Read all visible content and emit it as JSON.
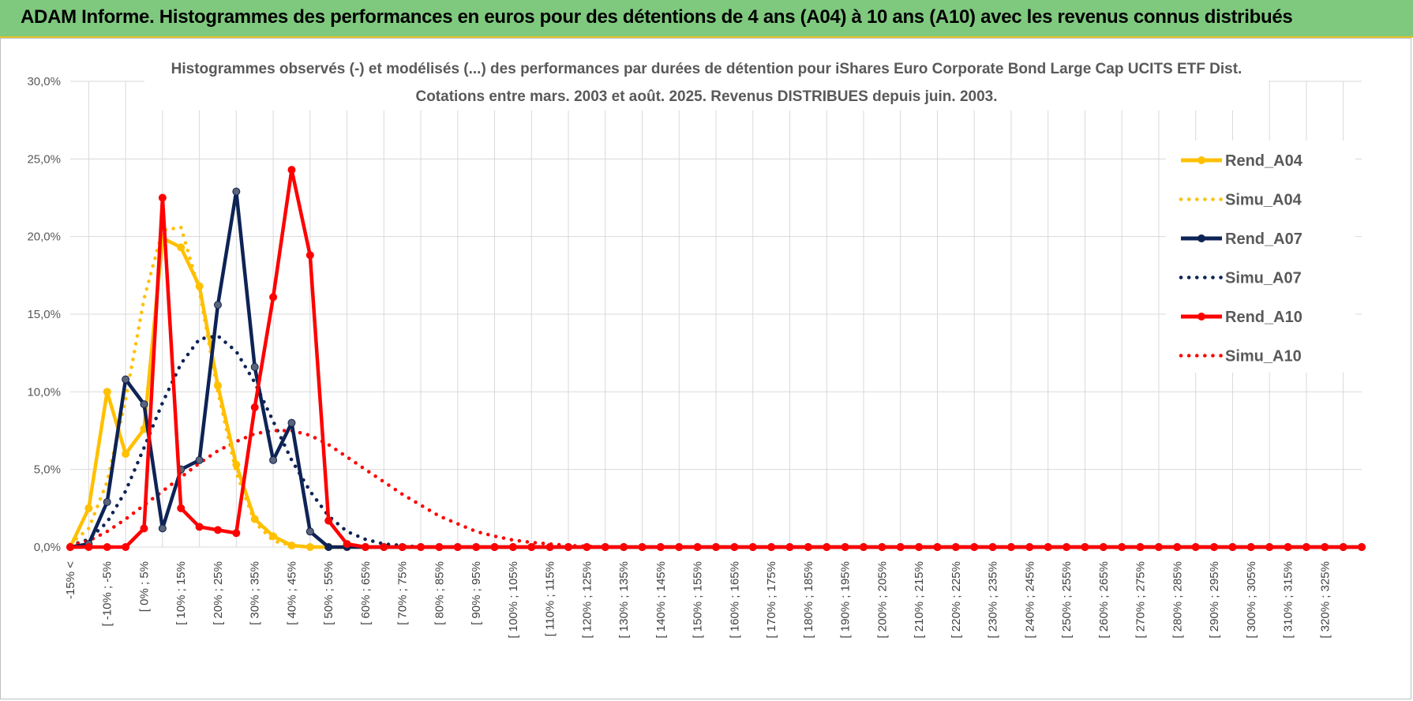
{
  "header": {
    "title": "ADAM Informe. Histogrammes des performances en euros pour des détentions de 4 ans (A04) à 10 ans (A10) avec les revenus connus distribués"
  },
  "chart_data": {
    "type": "line",
    "title": "Histogrammes observés (-) et modélisés (...) des performances par durées de détention pour iShares Euro Corporate Bond Large Cap UCITS ETF Dist.",
    "subtitle": "Cotations entre mars. 2003 et août. 2025. Revenus DISTRIBUES depuis juin. 2003.",
    "xlabel": "",
    "ylabel": "",
    "ylim": [
      0,
      30
    ],
    "yticks": [
      "0,0%",
      "5,0%",
      "10,0%",
      "15,0%",
      "20,0%",
      "25,0%",
      "30,0%"
    ],
    "grid": true,
    "legend_position": "right",
    "x_labels": [
      "-15% <",
      "[ -10% ; -5%",
      "[ 0% ; 5%",
      "[ 10% ; 15%",
      "[ 20% ; 25%",
      "[ 30% ; 35%",
      "[ 40% ; 45%",
      "[ 50% ; 55%",
      "[ 60% ; 65%",
      "[ 70% ; 75%",
      "[ 80% ; 85%",
      "[ 90% ; 95%",
      "[ 100% ; 105%",
      "[ 110% ; 115%",
      "[ 120% ; 125%",
      "[ 130% ; 135%",
      "[ 140% ; 145%",
      "[ 150% ; 155%",
      "[ 160% ; 165%",
      "[ 170% ; 175%",
      "[ 180% ; 185%",
      "[ 190% ; 195%",
      "[ 200% ; 205%",
      "[ 210% ; 215%",
      "[ 220% ; 225%",
      "[ 230% ; 235%",
      "[ 240% ; 245%",
      "[ 250% ; 255%",
      "[ 260% ; 265%",
      "[ 270% ; 275%",
      "[ 280% ; 285%",
      "[ 290% ; 295%",
      "[ 300% ; 305%",
      "[ 310% ; 315%",
      "[ 320% ; 325%"
    ],
    "series": [
      {
        "name": "Rend_A04",
        "style": "solid",
        "markers": true,
        "color": "#ffc000",
        "values": [
          0,
          2.5,
          10.0,
          6.0,
          7.6,
          19.9,
          19.3,
          16.8,
          10.4,
          5.3,
          1.8,
          0.7,
          0.1,
          0,
          0
        ]
      },
      {
        "name": "Simu_A04",
        "style": "dotted",
        "markers": false,
        "color": "#ffc000",
        "values": [
          0.2,
          1.2,
          4.2,
          9.5,
          16.0,
          20.4,
          20.6,
          16.5,
          10.0,
          4.8,
          1.6,
          0.4,
          0.1,
          0,
          0
        ]
      },
      {
        "name": "Rend_A07",
        "style": "solid",
        "markers": true,
        "color": "#0e2355",
        "values": [
          0,
          0.2,
          2.9,
          10.8,
          9.2,
          1.2,
          5.0,
          5.6,
          15.6,
          22.9,
          11.6,
          5.6,
          8.0,
          1.0,
          0,
          0,
          0,
          0
        ]
      },
      {
        "name": "Simu_A07",
        "style": "dotted",
        "markers": false,
        "color": "#0e2355",
        "values": [
          0.1,
          0.5,
          1.6,
          3.6,
          6.4,
          9.3,
          11.8,
          13.4,
          13.6,
          12.6,
          10.6,
          8.1,
          5.6,
          3.6,
          2.0,
          1.0,
          0.5,
          0.2,
          0.1,
          0
        ]
      },
      {
        "name": "Rend_A10",
        "style": "solid",
        "markers": true,
        "color": "#ff0000",
        "values": [
          0,
          0,
          0,
          0,
          1.2,
          22.5,
          2.5,
          1.3,
          1.1,
          0.9,
          9.0,
          16.1,
          24.3,
          18.8,
          1.7,
          0.2,
          0,
          0
        ]
      },
      {
        "name": "Simu_A10",
        "style": "dotted",
        "markers": false,
        "color": "#ff0000",
        "values": [
          0.1,
          0.4,
          1.0,
          1.8,
          2.7,
          3.6,
          4.5,
          5.4,
          6.2,
          6.8,
          7.3,
          7.5,
          7.5,
          7.2,
          6.6,
          5.8,
          5.0,
          4.2,
          3.4,
          2.7,
          2.0,
          1.5,
          1.0,
          0.7,
          0.45,
          0.3,
          0.2,
          0.1,
          0.05
        ]
      }
    ]
  }
}
